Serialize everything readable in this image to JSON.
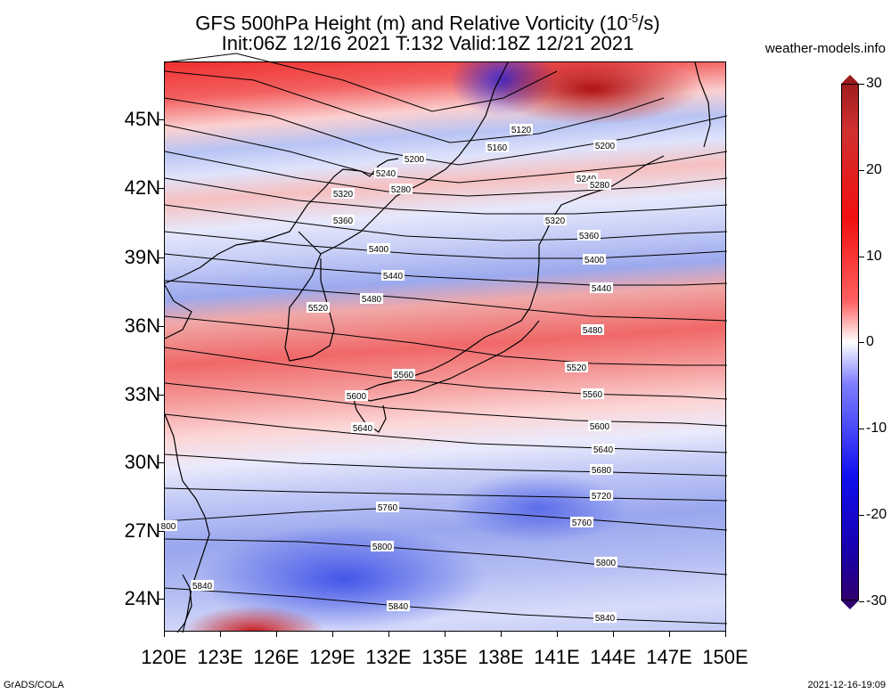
{
  "header": {
    "title_line1": "GFS 500hPa Height (m) and Relative Vorticity (10",
    "title_sup": "-5",
    "title_line1_end": "/s)",
    "title_line2": "Init:06Z 12/16 2021 T:132 Valid:18Z 12/21 2021",
    "site": "weather-models.info"
  },
  "footer": {
    "left": "GrADS/COLA",
    "right": "2021-12-16-19:09"
  },
  "axes": {
    "latitude_labels": [
      "45N",
      "42N",
      "39N",
      "36N",
      "33N",
      "30N",
      "27N",
      "24N"
    ],
    "longitude_labels": [
      "120E",
      "123E",
      "126E",
      "129E",
      "132E",
      "135E",
      "138E",
      "141E",
      "144E",
      "147E",
      "150E"
    ]
  },
  "colorbar": {
    "labels": [
      "30",
      "20",
      "10",
      "0",
      "-10",
      "-20",
      "-30"
    ],
    "colors": {
      "max": "#9b1b1b",
      "pos": "#f01010",
      "zero": "#ffffff",
      "neg": "#1010f0",
      "min": "#300070"
    }
  },
  "contours": [
    {
      "label": "5120"
    },
    {
      "label": "5160"
    },
    {
      "label": "5200"
    },
    {
      "label": "5240"
    },
    {
      "label": "5280"
    },
    {
      "label": "5320"
    },
    {
      "label": "5360"
    },
    {
      "label": "5400"
    },
    {
      "label": "5440"
    },
    {
      "label": "5480"
    },
    {
      "label": "5520"
    },
    {
      "label": "5560"
    },
    {
      "label": "5600"
    },
    {
      "label": "5640"
    },
    {
      "label": "5680"
    },
    {
      "label": "5720"
    },
    {
      "label": "5760"
    },
    {
      "label": "5800"
    },
    {
      "label": "5840"
    }
  ],
  "contour_labels": [
    {
      "text": "5120"
    },
    {
      "text": "5160"
    },
    {
      "text": "5200"
    },
    {
      "text": "5200"
    },
    {
      "text": "5240"
    },
    {
      "text": "5240"
    },
    {
      "text": "5280"
    },
    {
      "text": "5280"
    },
    {
      "text": "5320"
    },
    {
      "text": "5320"
    },
    {
      "text": "5360"
    },
    {
      "text": "5360"
    },
    {
      "text": "5400"
    },
    {
      "text": "5400"
    },
    {
      "text": "5440"
    },
    {
      "text": "5440"
    },
    {
      "text": "5480"
    },
    {
      "text": "5480"
    },
    {
      "text": "5520"
    },
    {
      "text": "5520"
    },
    {
      "text": "5560"
    },
    {
      "text": "5560"
    },
    {
      "text": "5600"
    },
    {
      "text": "5600"
    },
    {
      "text": "5640"
    },
    {
      "text": "5640"
    },
    {
      "text": "5680"
    },
    {
      "text": "5720"
    },
    {
      "text": "5760"
    },
    {
      "text": "5760"
    },
    {
      "text": "5800"
    },
    {
      "text": "5800"
    },
    {
      "text": "5840"
    },
    {
      "text": "5840"
    },
    {
      "text": "5840"
    },
    {
      "text": "800"
    }
  ]
}
